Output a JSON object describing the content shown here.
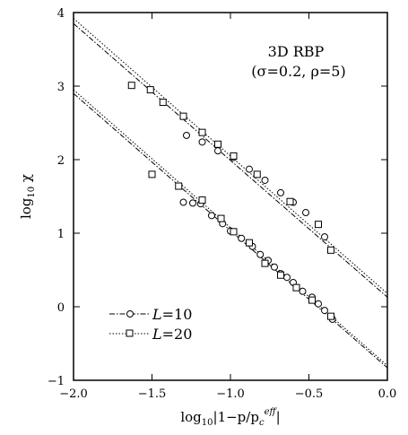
{
  "chart_data": {
    "type": "scatter",
    "xlabel": "log₁₀|1−p/p_c^eff|",
    "xlabel_parts": {
      "prefix": "log",
      "base": "10",
      "body": "|1−p/p",
      "sub": "c",
      "sup": "eff",
      "suffix": "|"
    },
    "ylabel": "log₁₀ χ",
    "ylabel_parts": {
      "prefix": "log",
      "base": "10",
      "body": " χ"
    },
    "xlim": [
      -2.0,
      0.0
    ],
    "ylim": [
      -1,
      4
    ],
    "x_ticks": [
      -2.0,
      -1.5,
      -1.0,
      -0.5,
      0.0
    ],
    "x_tick_labels": [
      "−2.0",
      "−1.5",
      "−1.0",
      "−0.5",
      "0.0"
    ],
    "y_ticks": [
      -1,
      0,
      1,
      2,
      3,
      4
    ],
    "y_tick_labels": [
      "−1",
      "0",
      "1",
      "2",
      "3",
      "4"
    ],
    "annotation_lines": [
      "3D RBP",
      "(σ=0.2, ρ=5)"
    ],
    "series": [
      {
        "name": "L=10",
        "marker": "circle",
        "line": "dash-dot",
        "points": [
          [
            -1.28,
            2.33
          ],
          [
            -1.18,
            2.24
          ],
          [
            -1.08,
            2.12
          ],
          [
            -0.98,
            2.03
          ],
          [
            -0.88,
            1.87
          ],
          [
            -0.78,
            1.72
          ],
          [
            -0.68,
            1.55
          ],
          [
            -0.6,
            1.42
          ],
          [
            -0.52,
            1.28
          ],
          [
            -0.4,
            0.95
          ],
          [
            -1.3,
            1.42
          ],
          [
            -1.24,
            1.41
          ],
          [
            -1.19,
            1.4
          ],
          [
            -1.12,
            1.24
          ],
          [
            -1.05,
            1.13
          ],
          [
            -1.0,
            1.03
          ],
          [
            -0.93,
            0.93
          ],
          [
            -0.86,
            0.82
          ],
          [
            -0.81,
            0.71
          ],
          [
            -0.76,
            0.63
          ],
          [
            -0.72,
            0.54
          ],
          [
            -0.68,
            0.45
          ],
          [
            -0.64,
            0.4
          ],
          [
            -0.6,
            0.33
          ],
          [
            -0.54,
            0.21
          ],
          [
            -0.48,
            0.13
          ],
          [
            -0.44,
            0.04
          ],
          [
            -0.4,
            -0.05
          ],
          [
            -0.35,
            -0.17
          ]
        ]
      },
      {
        "name": "L=20",
        "marker": "square",
        "line": "dotted",
        "points": [
          [
            -1.63,
            3.01
          ],
          [
            -1.51,
            2.95
          ],
          [
            -1.43,
            2.78
          ],
          [
            -1.3,
            2.59
          ],
          [
            -1.18,
            2.37
          ],
          [
            -1.08,
            2.21
          ],
          [
            -0.98,
            2.05
          ],
          [
            -0.83,
            1.8
          ],
          [
            -0.62,
            1.43
          ],
          [
            -0.44,
            1.12
          ],
          [
            -0.36,
            0.77
          ],
          [
            -1.5,
            1.8
          ],
          [
            -1.33,
            1.64
          ],
          [
            -1.18,
            1.45
          ],
          [
            -1.06,
            1.2
          ],
          [
            -0.98,
            1.02
          ],
          [
            -0.88,
            0.87
          ],
          [
            -0.78,
            0.59
          ],
          [
            -0.68,
            0.43
          ],
          [
            -0.58,
            0.26
          ],
          [
            -0.48,
            0.09
          ],
          [
            -0.36,
            -0.13
          ]
        ]
      }
    ],
    "fit_lines": [
      {
        "series": "L=20",
        "style": "dotted",
        "from": [
          -2.0,
          3.92
        ],
        "to": [
          0.0,
          0.18
        ]
      },
      {
        "series": "L=10",
        "style": "dash-dot",
        "from": [
          -2.0,
          3.85
        ],
        "to": [
          0.0,
          0.13
        ]
      },
      {
        "series": "L=20",
        "style": "dotted",
        "from": [
          -2.0,
          2.95
        ],
        "to": [
          0.0,
          -0.8
        ]
      },
      {
        "series": "L=10",
        "style": "dash-dot",
        "from": [
          -2.0,
          2.9
        ],
        "to": [
          0.0,
          -0.83
        ]
      }
    ],
    "legend": {
      "placement": "bottom-left",
      "entries": [
        {
          "symbol": "L",
          "equals": "=10",
          "marker": "circle",
          "line": "dash-dot"
        },
        {
          "symbol": "L",
          "equals": "=20",
          "marker": "square",
          "line": "dotted"
        }
      ]
    },
    "grid": false
  }
}
